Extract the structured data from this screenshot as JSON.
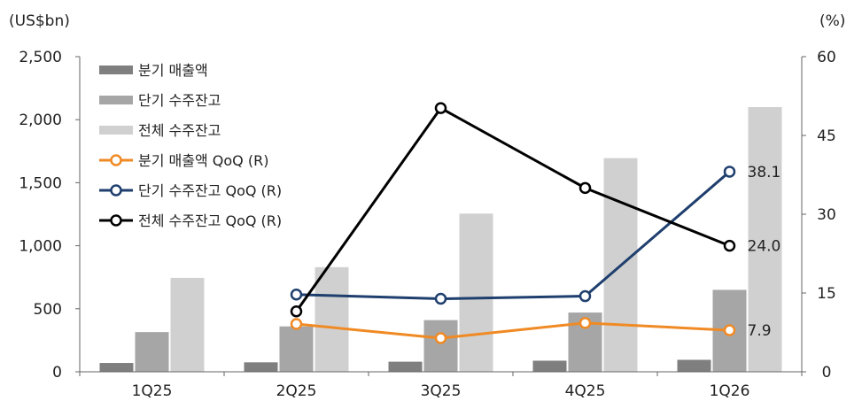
{
  "chart_data": {
    "type": "bar",
    "categories": [
      "1Q25",
      "2Q25",
      "3Q25",
      "4Q25",
      "1Q26"
    ],
    "y_left": {
      "unit": "(US$bn)",
      "ylim": [
        0,
        2500
      ],
      "ticks": [
        0,
        500,
        1000,
        1500,
        2000,
        2500
      ],
      "tick_labels": [
        "0",
        "500",
        "1,000",
        "1,500",
        "2,000",
        "2,500"
      ]
    },
    "y_right": {
      "unit": "(%)",
      "ylim": [
        0,
        60
      ],
      "ticks": [
        0,
        15,
        30,
        45,
        60
      ],
      "tick_labels": [
        "0",
        "15",
        "30",
        "45",
        "60"
      ]
    },
    "bar_series": [
      {
        "name": "분기 매출액",
        "color": "#7f7f7f",
        "values": [
          70,
          75,
          80,
          88,
          95
        ]
      },
      {
        "name": "단기 수주잔고",
        "color": "#a6a6a6",
        "values": [
          315,
          360,
          410,
          470,
          650
        ]
      },
      {
        "name": "전체 수주잔고",
        "color": "#d0d0d0",
        "values": [
          745,
          830,
          1255,
          1695,
          2100
        ]
      }
    ],
    "line_series": [
      {
        "name": "분기 매출액 QoQ (R)",
        "color": "#f08a24",
        "values": [
          null,
          9.1,
          6.4,
          9.3,
          7.9
        ]
      },
      {
        "name": "단기 수주잔고 QoQ (R)",
        "color": "#1f3f6e",
        "values": [
          null,
          14.7,
          13.9,
          14.4,
          38.1
        ]
      },
      {
        "name": "전체 수주잔고 QoQ (R)",
        "color": "#000000",
        "values": [
          null,
          11.5,
          50.2,
          35.0,
          24.0
        ]
      }
    ],
    "end_labels": [
      "7.9",
      "38.1",
      "24.0"
    ],
    "legend_position": "top-left",
    "grid": false
  }
}
